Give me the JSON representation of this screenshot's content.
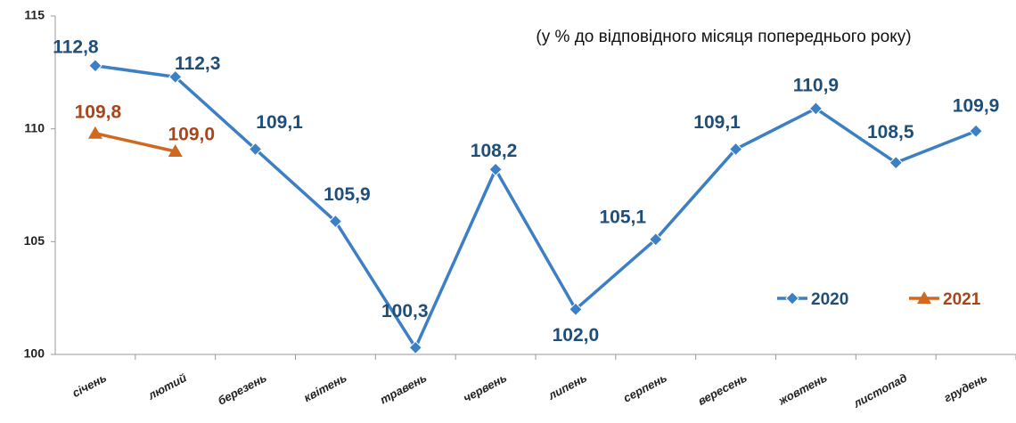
{
  "chart_data": {
    "type": "line",
    "subtitle": "(у % до відповідного місяця попереднього року)",
    "categories": [
      "січень",
      "лютий",
      "березень",
      "квітень",
      "травень",
      "червень",
      "липень",
      "серпень",
      "вересень",
      "жовтень",
      "листопад",
      "грудень"
    ],
    "series": [
      {
        "name": "2020",
        "color": "#3d7fc4",
        "label_color": "#1f4e79",
        "marker": "diamond",
        "values": [
          112.8,
          112.3,
          109.1,
          105.9,
          100.3,
          108.2,
          102.0,
          105.1,
          109.1,
          110.9,
          108.5,
          109.9
        ],
        "value_labels": [
          "112,8",
          "112,3",
          "109,1",
          "105,9",
          "100,3",
          "108,2",
          "102,0",
          "105,1",
          "109,1",
          "110,9",
          "108,5",
          "109,9"
        ]
      },
      {
        "name": "2021",
        "color": "#d0691f",
        "label_color": "#a6461a",
        "marker": "triangle",
        "values": [
          109.8,
          109.0,
          null,
          null,
          null,
          null,
          null,
          null,
          null,
          null,
          null,
          null
        ],
        "value_labels": [
          "109,8",
          "109,0",
          null,
          null,
          null,
          null,
          null,
          null,
          null,
          null,
          null,
          null
        ]
      }
    ],
    "ylim": [
      100,
      115
    ],
    "yticks": [
      100,
      105,
      110,
      115
    ],
    "grid": false,
    "legend": "lower-right"
  }
}
